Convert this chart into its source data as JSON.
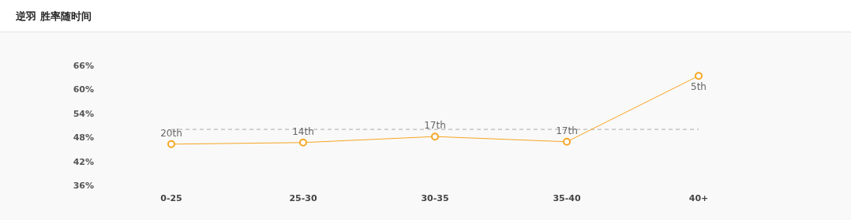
{
  "chart_data": {
    "type": "line",
    "title": "逆羽 胜率随时间",
    "categories": [
      "0-25",
      "25-30",
      "30-35",
      "35-40",
      "40+"
    ],
    "series": [
      {
        "color": "#f5a623",
        "values": [
          46.3,
          46.7,
          48.2,
          46.9,
          63.4
        ]
      }
    ],
    "annotations": [
      {
        "text": "20th",
        "x": "0-25",
        "y": 46.3
      },
      {
        "text": "14th",
        "x": "25-30",
        "y": 46.7
      },
      {
        "text": "17th",
        "x": "30-35",
        "y": 48.2
      },
      {
        "text": "17th",
        "x": "35-40",
        "y": 46.9
      },
      {
        "text": "5th",
        "x": "40+",
        "y": 63.4
      }
    ],
    "ylim": [
      36,
      66
    ],
    "yticks": [
      {
        "value": 36,
        "label": "36%"
      },
      {
        "value": 42,
        "label": "42%"
      },
      {
        "value": 48,
        "label": "48%"
      },
      {
        "value": 54,
        "label": "54%"
      },
      {
        "value": 60,
        "label": "60%"
      },
      {
        "value": 66,
        "label": "66%"
      }
    ],
    "ref_lines": [
      {
        "axis": "y",
        "value": 50,
        "color": "#bbbbbb",
        "line_style": "dashed"
      }
    ],
    "marker": "circle",
    "line_style": "solid",
    "grid": false
  }
}
